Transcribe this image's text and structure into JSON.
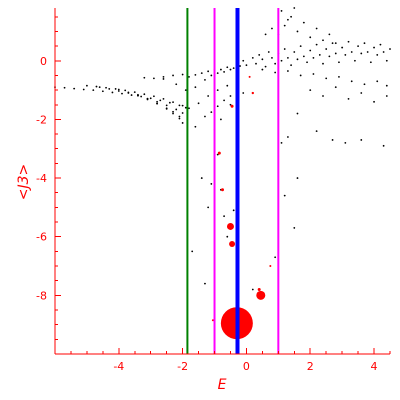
{
  "chart_data": {
    "type": "scatter",
    "xlabel": "E",
    "ylabel": "<J3>",
    "xlim": [
      -6,
      4.5
    ],
    "ylim": [
      -10,
      1.8
    ],
    "grid": false,
    "axis_color": "#ff0000",
    "x_ticks": [
      -4,
      -2,
      0,
      2,
      4
    ],
    "y_ticks": [
      0,
      -2,
      -4,
      -6,
      -8
    ],
    "x_tick_labels": [
      "-4",
      "-2",
      "0",
      "2",
      "4"
    ],
    "y_tick_labels": [
      "0",
      "-2",
      "-4",
      "-6",
      "-8"
    ],
    "vertical_lines": [
      {
        "x": -1.85,
        "color": "#008000",
        "width": 2
      },
      {
        "x": -1.0,
        "color": "#ff00ff",
        "width": 2
      },
      {
        "x": -0.28,
        "color": "#0000ff",
        "width": 4
      },
      {
        "x": 1.0,
        "color": "#ff00ff",
        "width": 2
      }
    ],
    "series": [
      {
        "marker_color": "#000000",
        "points": [
          [
            -6.0,
            -0.9
          ],
          [
            -5.7,
            -0.92
          ],
          [
            -5.4,
            -0.95
          ],
          [
            -5.1,
            -0.98
          ],
          [
            -4.8,
            -1.0
          ],
          [
            -4.5,
            -1.04
          ],
          [
            -4.2,
            -1.08
          ],
          [
            -3.9,
            -1.12
          ],
          [
            -3.6,
            -1.17
          ],
          [
            -3.3,
            -1.22
          ],
          [
            -3.0,
            -1.28
          ],
          [
            -2.7,
            -1.35
          ],
          [
            -2.4,
            -1.43
          ],
          [
            -2.1,
            -1.52
          ],
          [
            -1.9,
            -1.6
          ],
          [
            -5.0,
            -0.85
          ],
          [
            -4.7,
            -0.88
          ],
          [
            -4.4,
            -0.92
          ],
          [
            -4.1,
            -0.96
          ],
          [
            -3.8,
            -1.01
          ],
          [
            -3.5,
            -1.07
          ],
          [
            -3.2,
            -1.14
          ],
          [
            -2.9,
            -1.21
          ],
          [
            -2.6,
            -1.3
          ],
          [
            -2.3,
            -1.41
          ],
          [
            -2.0,
            -1.53
          ],
          [
            -1.8,
            -1.62
          ],
          [
            -4.6,
            -0.9
          ],
          [
            -4.3,
            -0.96
          ],
          [
            -4.0,
            -1.03
          ],
          [
            -3.7,
            -1.1
          ],
          [
            -3.4,
            -1.19
          ],
          [
            -3.1,
            -1.29
          ],
          [
            -2.8,
            -1.4
          ],
          [
            -2.5,
            -1.52
          ],
          [
            -2.2,
            -1.66
          ],
          [
            -2.0,
            -1.78
          ],
          [
            -4.0,
            -0.98
          ],
          [
            -3.7,
            -1.08
          ],
          [
            -3.4,
            -1.19
          ],
          [
            -3.1,
            -1.32
          ],
          [
            -2.8,
            -1.46
          ],
          [
            -2.5,
            -1.62
          ],
          [
            -2.3,
            -1.74
          ],
          [
            -2.1,
            -1.9
          ],
          [
            -3.4,
            -1.16
          ],
          [
            -3.1,
            -1.3
          ],
          [
            -2.8,
            -1.46
          ],
          [
            -2.5,
            -1.64
          ],
          [
            -2.3,
            -1.8
          ],
          [
            -2.1,
            -1.97
          ],
          [
            -2.0,
            -2.12
          ],
          [
            -3.2,
            -0.58
          ],
          [
            -2.9,
            -0.6
          ],
          [
            -2.6,
            -0.55
          ],
          [
            -2.3,
            -0.5
          ],
          [
            -2.0,
            -0.47
          ],
          [
            -1.8,
            -0.55
          ],
          [
            -1.6,
            -0.48
          ],
          [
            -1.4,
            -0.42
          ],
          [
            -1.2,
            -0.36
          ],
          [
            -1.0,
            -0.3
          ],
          [
            -0.8,
            -0.3
          ],
          [
            -0.6,
            -0.22
          ],
          [
            -0.4,
            -0.25
          ],
          [
            -0.2,
            -0.18
          ],
          [
            -2.6,
            -0.62
          ],
          [
            -2.2,
            -0.8
          ],
          [
            -1.9,
            -1.0
          ],
          [
            -1.6,
            -0.9
          ],
          [
            -1.3,
            -0.65
          ],
          [
            -1.1,
            -0.5
          ],
          [
            -0.9,
            -0.42
          ],
          [
            -0.7,
            -0.38
          ],
          [
            -0.5,
            -0.3
          ],
          [
            -1.6,
            -2.25
          ],
          [
            -1.3,
            -1.9
          ],
          [
            -1.1,
            -1.75
          ],
          [
            -0.9,
            -1.55
          ],
          [
            -0.7,
            -1.35
          ],
          [
            -0.5,
            -1.2
          ],
          [
            -1.5,
            -1.45
          ],
          [
            -1.2,
            -1.2
          ],
          [
            -0.9,
            -1.0
          ],
          [
            -0.6,
            -0.85
          ],
          [
            -0.1,
            0.0
          ],
          [
            0.0,
            -0.15
          ],
          [
            0.2,
            0.1
          ],
          [
            0.3,
            -0.1
          ],
          [
            0.4,
            0.2
          ],
          [
            0.5,
            0.05
          ],
          [
            0.6,
            -0.2
          ],
          [
            0.7,
            0.3
          ],
          [
            0.8,
            0.1
          ],
          [
            0.9,
            -0.1
          ],
          [
            1.0,
            0.25
          ],
          [
            1.1,
            0.0
          ],
          [
            1.2,
            0.4
          ],
          [
            1.3,
            0.1
          ],
          [
            1.4,
            -0.15
          ],
          [
            1.5,
            0.3
          ],
          [
            1.6,
            0.05
          ],
          [
            1.7,
            0.5
          ],
          [
            1.8,
            0.15
          ],
          [
            1.9,
            -0.05
          ],
          [
            2.0,
            0.35
          ],
          [
            2.1,
            0.1
          ],
          [
            2.2,
            0.55
          ],
          [
            2.3,
            0.2
          ],
          [
            2.4,
            -0.1
          ],
          [
            2.5,
            0.4
          ],
          [
            2.6,
            0.15
          ],
          [
            2.7,
            0.6
          ],
          [
            2.8,
            0.25
          ],
          [
            2.9,
            -0.05
          ],
          [
            3.0,
            0.45
          ],
          [
            3.1,
            0.2
          ],
          [
            3.2,
            0.65
          ],
          [
            3.3,
            0.3
          ],
          [
            3.4,
            0.0
          ],
          [
            3.5,
            0.5
          ],
          [
            3.6,
            0.25
          ],
          [
            3.7,
            0.6
          ],
          [
            3.8,
            0.3
          ],
          [
            3.9,
            -0.05
          ],
          [
            4.0,
            0.45
          ],
          [
            4.1,
            0.2
          ],
          [
            4.2,
            0.55
          ],
          [
            4.3,
            0.3
          ],
          [
            4.4,
            0.0
          ],
          [
            4.5,
            0.4
          ],
          [
            0.5,
            -0.3
          ],
          [
            0.9,
            -0.4
          ],
          [
            1.3,
            -0.35
          ],
          [
            1.7,
            -0.5
          ],
          [
            2.1,
            -0.45
          ],
          [
            2.5,
            -0.6
          ],
          [
            2.9,
            -0.55
          ],
          [
            3.3,
            -0.7
          ],
          [
            3.7,
            -0.8
          ],
          [
            4.1,
            -0.7
          ],
          [
            4.4,
            -0.85
          ],
          [
            1.0,
            0.9
          ],
          [
            1.2,
            1.2
          ],
          [
            1.4,
            1.5
          ],
          [
            1.6,
            1.0
          ],
          [
            1.8,
            1.3
          ],
          [
            2.0,
            0.8
          ],
          [
            2.2,
            1.1
          ],
          [
            2.4,
            0.7
          ],
          [
            2.6,
            0.9
          ],
          [
            2.8,
            0.6
          ],
          [
            1.1,
            1.7
          ],
          [
            1.3,
            1.4
          ],
          [
            1.5,
            1.8
          ],
          [
            0.8,
            1.1
          ],
          [
            0.6,
            0.9
          ],
          [
            2.0,
            -1.0
          ],
          [
            2.4,
            -1.2
          ],
          [
            2.8,
            -0.9
          ],
          [
            3.2,
            -1.3
          ],
          [
            3.6,
            -1.1
          ],
          [
            4.0,
            -1.4
          ],
          [
            4.4,
            -1.2
          ],
          [
            1.6,
            -1.8
          ],
          [
            2.2,
            -2.4
          ],
          [
            1.3,
            -2.6
          ],
          [
            1.1,
            -2.8
          ],
          [
            2.7,
            -2.7
          ],
          [
            3.1,
            -2.8
          ],
          [
            3.6,
            -2.7
          ],
          [
            4.3,
            -2.9
          ],
          [
            -0.3,
            -0.85
          ],
          [
            -0.1,
            -1.1
          ],
          [
            -0.5,
            -1.5
          ],
          [
            -0.8,
            -2.0
          ],
          [
            -1.0,
            -2.35
          ],
          [
            -1.7,
            -6.5
          ],
          [
            -1.4,
            -4.0
          ],
          [
            -1.2,
            -5.0
          ],
          [
            -1.1,
            -4.2
          ],
          [
            -0.8,
            -4.4
          ],
          [
            -0.7,
            -5.3
          ],
          [
            -0.9,
            -3.2
          ],
          [
            -0.4,
            -5.1
          ],
          [
            -0.6,
            -6.0
          ],
          [
            -1.3,
            -7.6
          ],
          [
            1.2,
            -4.6
          ],
          [
            1.6,
            -4.0
          ],
          [
            0.9,
            -6.7
          ],
          [
            1.5,
            -5.7
          ],
          [
            -0.3,
            -8.1
          ],
          [
            0.2,
            -7.8
          ]
        ]
      },
      {
        "marker_color": "#ff0000",
        "points": [
          [
            -0.3,
            -8.95
          ],
          [
            0.45,
            -8.0
          ],
          [
            -0.5,
            -5.65
          ],
          [
            -0.45,
            -6.25
          ],
          [
            -0.85,
            -3.15
          ],
          [
            -0.75,
            -4.4
          ],
          [
            -0.45,
            -1.55
          ],
          [
            0.4,
            -7.8
          ],
          [
            0.2,
            -1.1
          ],
          [
            -0.3,
            -6.05
          ],
          [
            -1.05,
            -8.85
          ],
          [
            0.75,
            -7.0
          ],
          [
            0.1,
            -0.55
          ]
        ],
        "sizes": [
          16,
          4.5,
          3.5,
          3.0,
          1.5,
          1.5,
          1.5,
          1.5,
          1.2,
          1.2,
          1.0,
          1.0,
          1.0
        ]
      }
    ]
  }
}
